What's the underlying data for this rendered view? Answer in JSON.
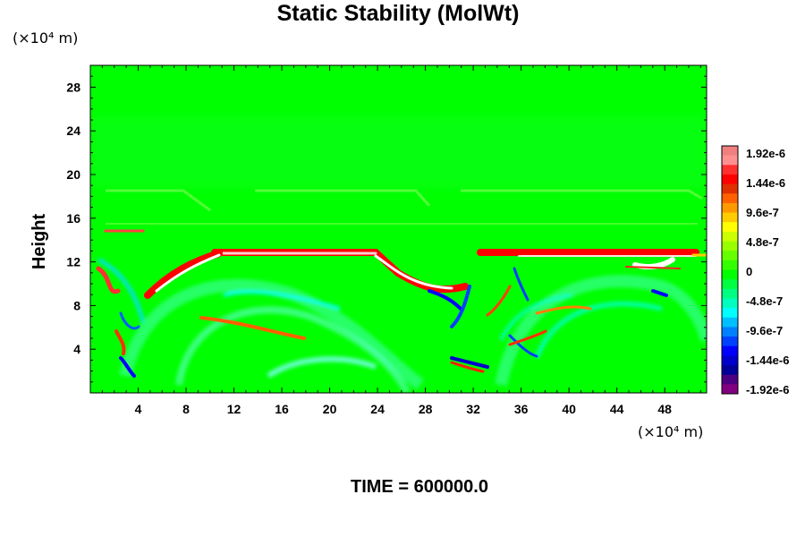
{
  "chart_data": {
    "type": "heatmap",
    "title": "Static Stability (MolWt)",
    "ylabel": "Height",
    "x_unit_label": "(×10⁴ m)",
    "y_unit_label": "(×10⁴ m)",
    "footer": "TIME = 600000.0",
    "xlim": [
      0,
      51.5
    ],
    "ylim": [
      0,
      30
    ],
    "x_ticks": [
      4,
      8,
      12,
      16,
      20,
      24,
      28,
      32,
      36,
      40,
      44,
      48
    ],
    "y_ticks": [
      4,
      8,
      12,
      16,
      20,
      24,
      28
    ],
    "background_level": "0",
    "features": [
      {
        "kind": "band",
        "x": [
          6,
          24
        ],
        "y": [
          12.8,
          13.3
        ],
        "level": "1.92e-6"
      },
      {
        "kind": "band",
        "x": [
          34,
          49
        ],
        "y": [
          12.8,
          13.3
        ],
        "level": "1.92e-6"
      },
      {
        "kind": "ridge",
        "x": [
          5,
          24.5,
          27,
          30
        ],
        "y": [
          9.5,
          12.8,
          11.5,
          10
        ],
        "level": "1.44e-6"
      },
      {
        "kind": "streak",
        "x": [
          9,
          18
        ],
        "y": [
          6.8,
          5
        ],
        "level": "9.6e-7"
      },
      {
        "kind": "streak",
        "x": [
          29.5,
          31.5
        ],
        "y": [
          3.2,
          2.6
        ],
        "level": "-1.44e-6"
      }
    ],
    "colorbar": {
      "labels": [
        "1.92e-6",
        "1.44e-6",
        "9.6e-7",
        "4.8e-7",
        "0",
        "-4.8e-7",
        "-9.6e-7",
        "-1.44e-6",
        "-1.92e-6"
      ],
      "colors": [
        "#f08080",
        "#ff9090",
        "#ff3030",
        "#ff0000",
        "#e03000",
        "#ff6000",
        "#ff9900",
        "#ffcc00",
        "#ffff00",
        "#ccff00",
        "#99ff00",
        "#66ff00",
        "#33ff00",
        "#00ff00",
        "#00ff40",
        "#00ff80",
        "#00ffbf",
        "#00ffff",
        "#00bfff",
        "#0080ff",
        "#0040ff",
        "#0000ff",
        "#0000cc",
        "#000099",
        "#4b0082",
        "#800080"
      ]
    }
  }
}
